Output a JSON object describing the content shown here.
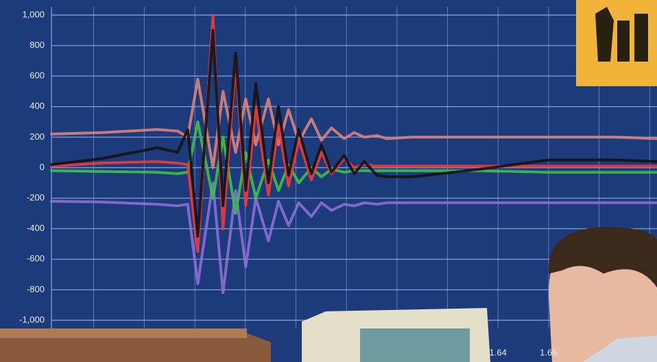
{
  "chart_data": {
    "type": "line",
    "x": [
      1.463,
      1.483,
      1.505,
      1.513,
      1.517,
      1.521,
      1.527,
      1.531,
      1.536,
      1.54,
      1.544,
      1.549,
      1.553,
      1.557,
      1.561,
      1.566,
      1.57,
      1.574,
      1.579,
      1.583,
      1.587,
      1.592,
      1.596,
      1.606,
      1.633,
      1.66,
      1.687,
      1.703
    ],
    "series": [
      {
        "color": "#d9837a",
        "values": [
          220,
          230,
          250,
          240,
          200,
          580,
          0,
          500,
          100,
          450,
          150,
          450,
          150,
          380,
          170,
          320,
          180,
          260,
          190,
          230,
          200,
          210,
          190,
          200,
          200,
          200,
          200,
          190
        ]
      },
      {
        "color": "#8a6fd6",
        "values": [
          -220,
          -225,
          -240,
          -250,
          -240,
          -760,
          -100,
          -820,
          -150,
          -650,
          -200,
          -480,
          -220,
          -380,
          -230,
          -320,
          -230,
          -280,
          -240,
          -250,
          -230,
          -240,
          -230,
          -230,
          -230,
          -230,
          -230,
          -230
        ]
      },
      {
        "color": "#3fbf4a",
        "values": [
          -20,
          -25,
          -30,
          -40,
          -30,
          300,
          -200,
          200,
          -300,
          100,
          -200,
          50,
          -150,
          20,
          -100,
          0,
          -60,
          -10,
          -30,
          -20,
          -20,
          -20,
          -20,
          -20,
          -20,
          -30,
          -30,
          -30
        ]
      },
      {
        "color": "#ee3a3a",
        "values": [
          10,
          30,
          40,
          30,
          20,
          -550,
          1000,
          -400,
          700,
          -250,
          400,
          -180,
          280,
          -120,
          180,
          -80,
          100,
          -40,
          60,
          0,
          20,
          10,
          10,
          10,
          10,
          10,
          10,
          10
        ]
      },
      {
        "color": "#141414",
        "values": [
          20,
          60,
          130,
          100,
          250,
          -450,
          900,
          -250,
          750,
          -150,
          550,
          -100,
          400,
          -50,
          250,
          -40,
          150,
          -30,
          80,
          -40,
          40,
          -50,
          -60,
          -60,
          -10,
          50,
          50,
          40
        ]
      }
    ],
    "xlim": [
      1.463,
      1.703
    ],
    "xticks": [
      1.64,
      1.66
    ],
    "ylim": [
      -1000,
      1000
    ],
    "yticks": [
      {
        "value": -1000,
        "label": "-1,000"
      },
      -800,
      -600,
      -400,
      -200,
      0,
      200,
      400,
      600,
      800,
      {
        "value": 1000,
        "label": "1,000"
      }
    ],
    "grid": true
  }
}
